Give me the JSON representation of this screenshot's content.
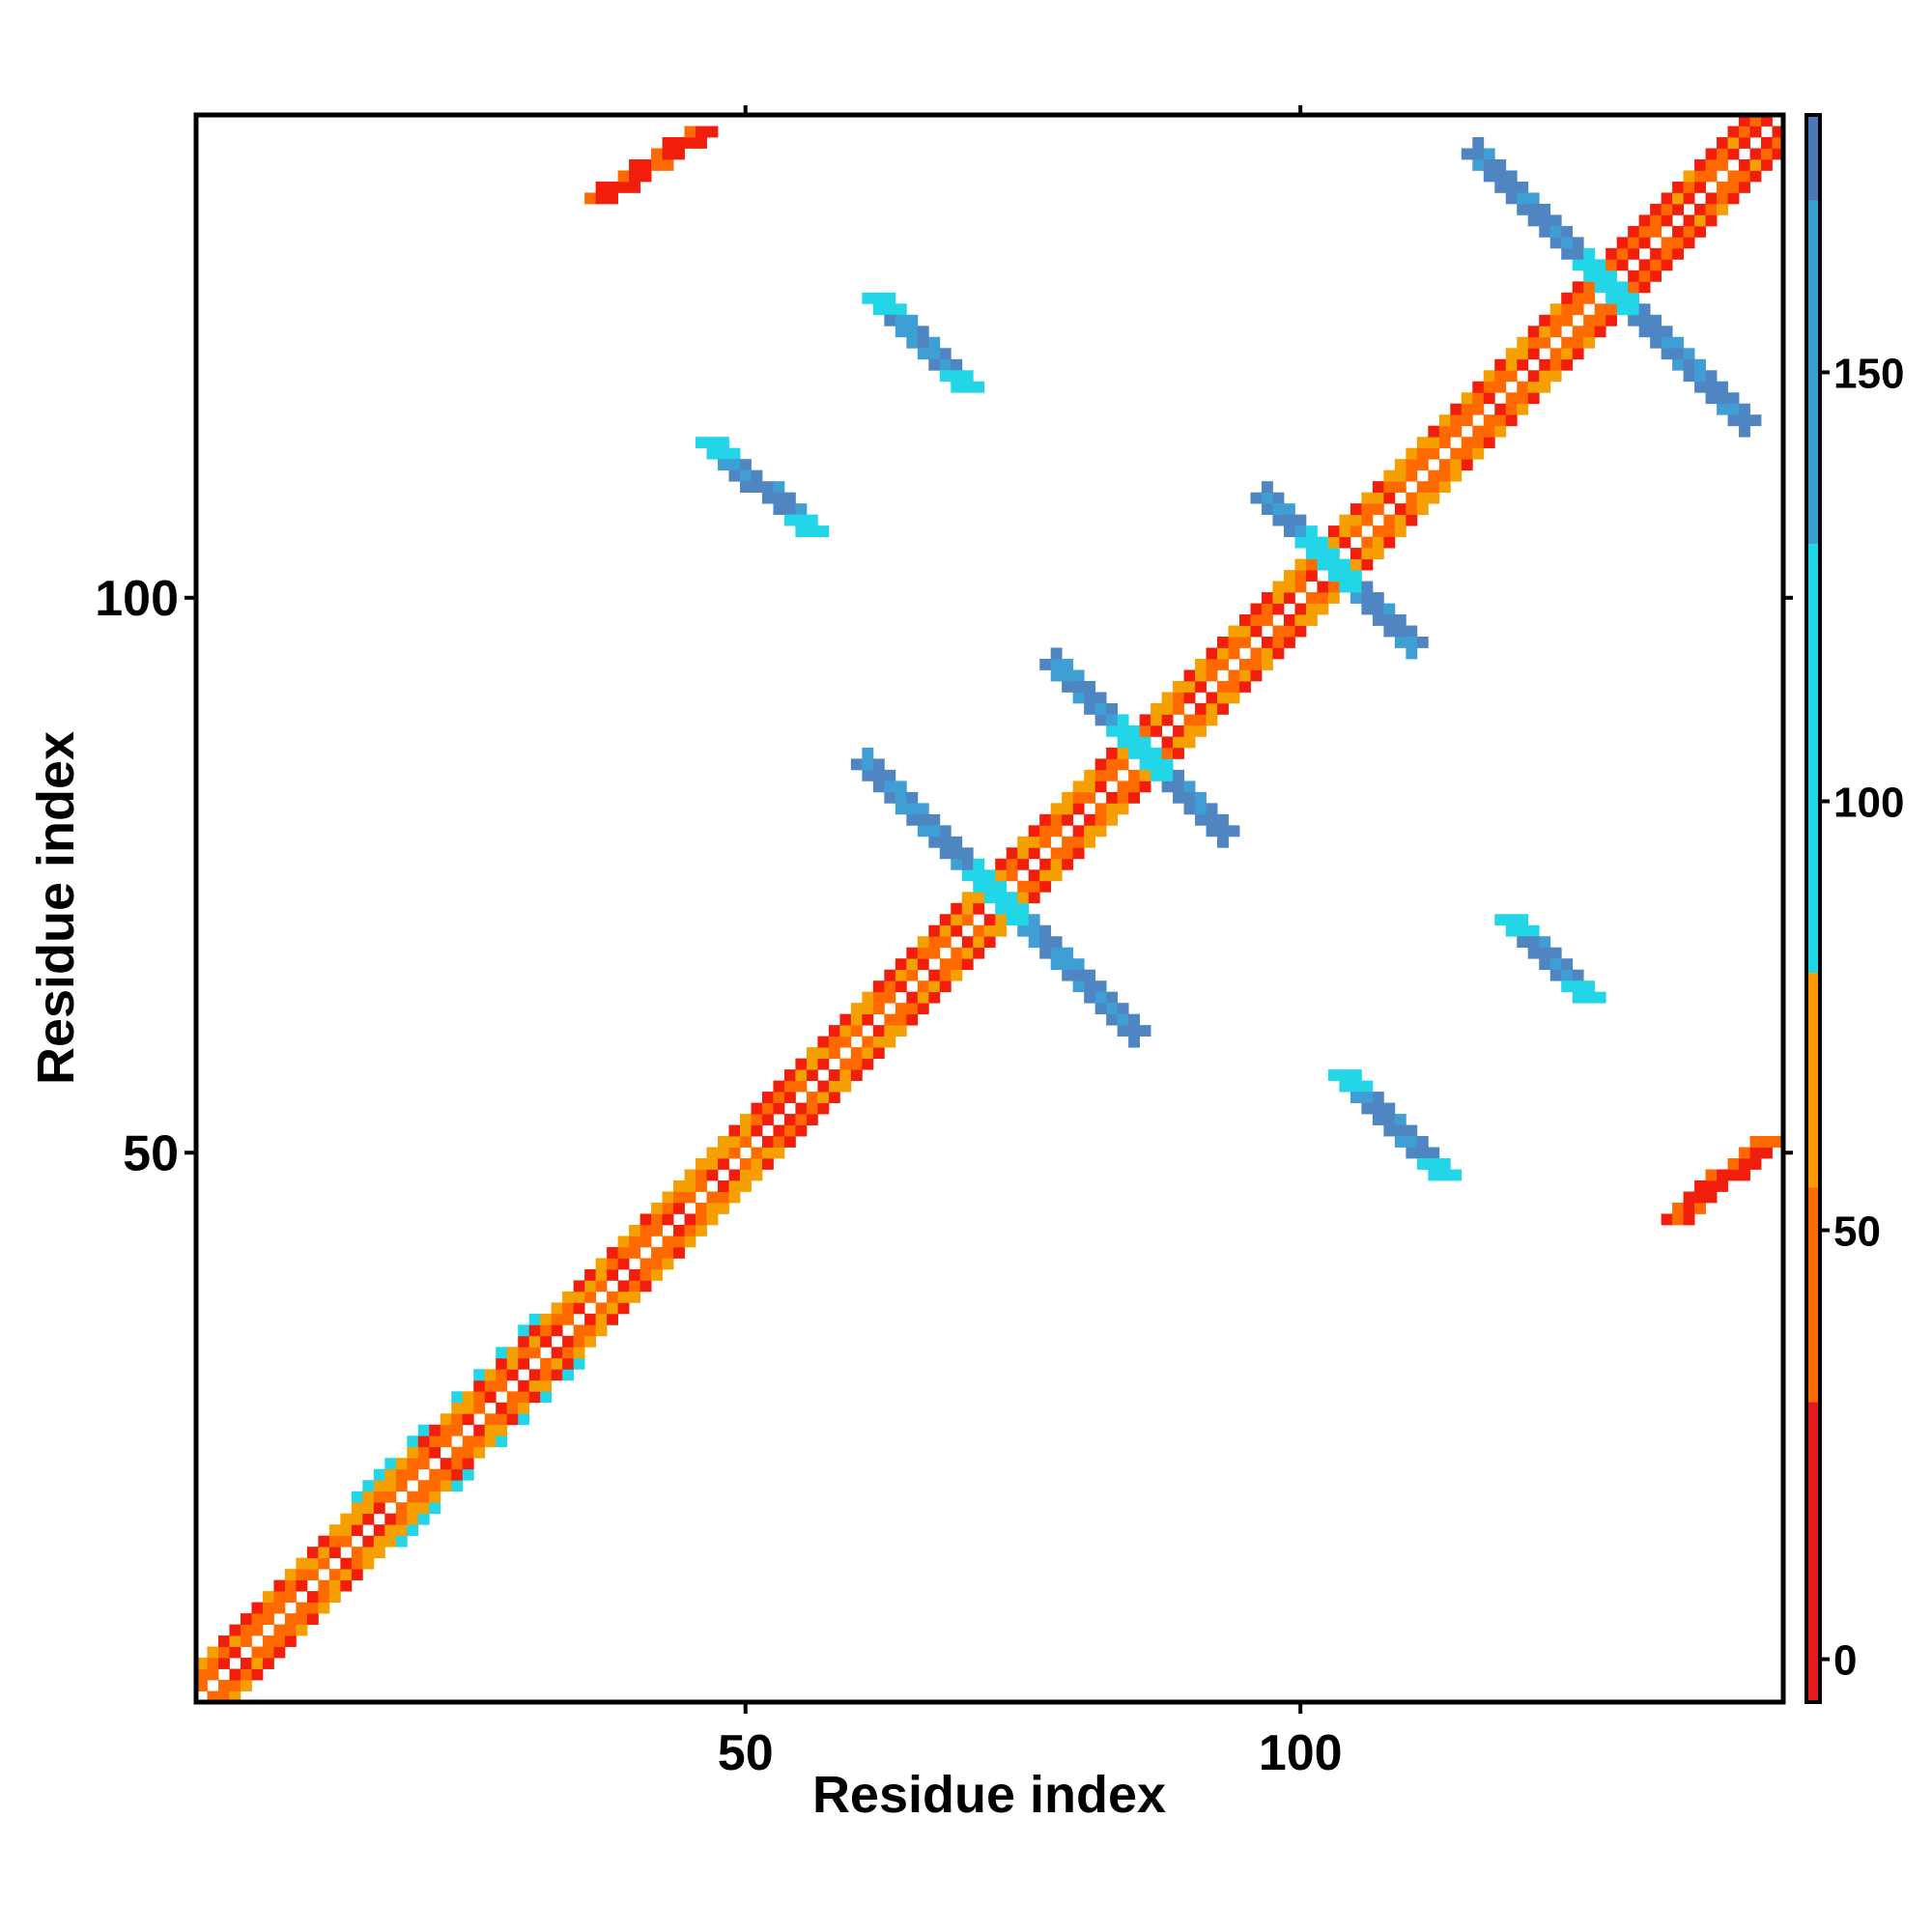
{
  "chart_data": {
    "type": "heatmap",
    "title": "",
    "xlabel": "Residue index",
    "ylabel": "Residue index",
    "xlim": [
      1,
      143
    ],
    "ylim": [
      1,
      143
    ],
    "x_ticks": [
      50,
      100
    ],
    "y_ticks": [
      50,
      100
    ],
    "grid": false,
    "legend": "colorbar-right",
    "colorbar": {
      "range": [
        -5,
        180
      ],
      "ticks": [
        0,
        50,
        100,
        150
      ],
      "stops": [
        {
          "from": -5,
          "to": 30,
          "color": "#e41a1c"
        },
        {
          "from": 30,
          "to": 55,
          "color": "#ff6a00"
        },
        {
          "from": 55,
          "to": 80,
          "color": "#ff9900"
        },
        {
          "from": 80,
          "to": 130,
          "color": "#1fd6e6"
        },
        {
          "from": 130,
          "to": 170,
          "color": "#3a9fd0"
        },
        {
          "from": 170,
          "to": 180,
          "color": "#4a78b8"
        }
      ]
    },
    "cell_colors": {
      "red": "#f01e0a",
      "orange": "#ff6a00",
      "amber": "#f5a000",
      "cyan": "#22d6e8",
      "blue": "#3f9fd4",
      "steel": "#4f86c2"
    },
    "features": [
      {
        "kind": "diagonal",
        "from": 1,
        "to": 143
      },
      {
        "kind": "antiparallel-strand",
        "center": [
          73,
          73
        ],
        "extent": [
          [
            61,
            85
          ],
          [
            61,
            85
          ]
        ],
        "color": "blue"
      },
      {
        "kind": "antiparallel-strand",
        "center": [
          86,
          86
        ],
        "extent": [
          [
            78,
            93
          ],
          [
            78,
            93
          ]
        ],
        "color": "blue"
      },
      {
        "kind": "antiparallel-strand",
        "center": [
          103,
          103
        ],
        "extent": [
          [
            97,
            110
          ],
          [
            97,
            110
          ]
        ],
        "color": "blue"
      },
      {
        "kind": "antiparallel-strand",
        "center": [
          128,
          128
        ],
        "extent": [
          [
            116,
            140
          ],
          [
            116,
            140
          ]
        ],
        "color": "blue"
      },
      {
        "kind": "offdiag-segment",
        "from": [
          47,
          114
        ],
        "to": [
          56,
          106
        ],
        "color": "blue"
      },
      {
        "kind": "offdiag-segment",
        "from": [
          62,
          127
        ],
        "to": [
          70,
          119
        ],
        "color": "blue"
      },
      {
        "kind": "offdiag-segment",
        "from": [
          104,
          57
        ],
        "to": [
          113,
          48
        ],
        "color": "blue"
      },
      {
        "kind": "offdiag-segment",
        "from": [
          119,
          71
        ],
        "to": [
          126,
          64
        ],
        "color": "blue"
      },
      {
        "kind": "offdiag-segment",
        "from": [
          37,
          136
        ],
        "to": [
          46,
          142
        ],
        "color": "red"
      },
      {
        "kind": "offdiag-segment",
        "from": [
          134,
          44
        ],
        "to": [
          142,
          51
        ],
        "color": "red"
      }
    ]
  }
}
